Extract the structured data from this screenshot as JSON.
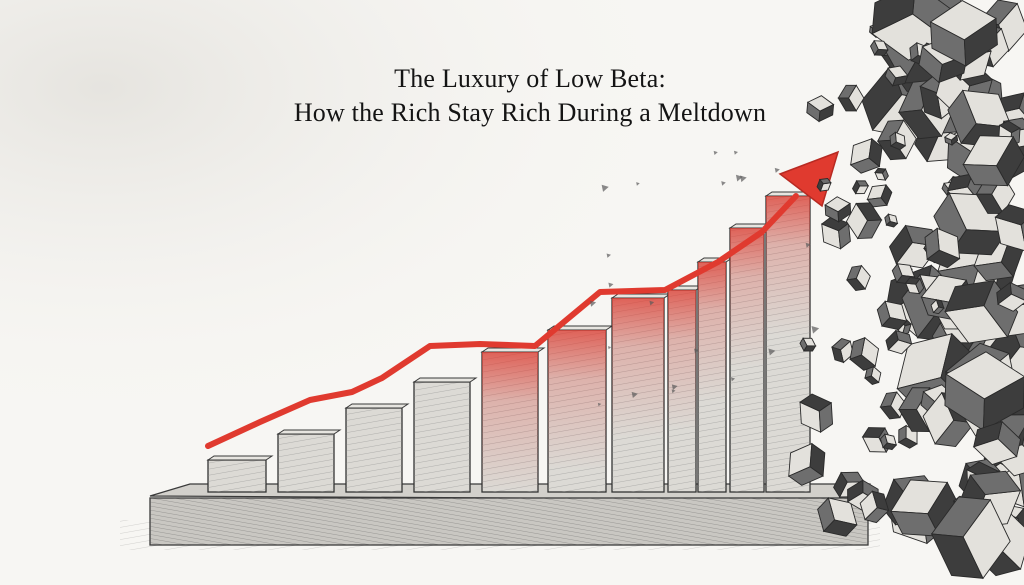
{
  "illustration": {
    "title_line_1": "The Luxury of Low Beta:",
    "title_line_2": "How the Rich Stay Rich During a Meltdown",
    "accent_color": "#e03a2f",
    "pencil_color": "#3a3a3a",
    "background_color": "#f7f6f3",
    "bar_count": 10,
    "style": "pencil sketch with red trend arrow and shattering cubes"
  }
}
